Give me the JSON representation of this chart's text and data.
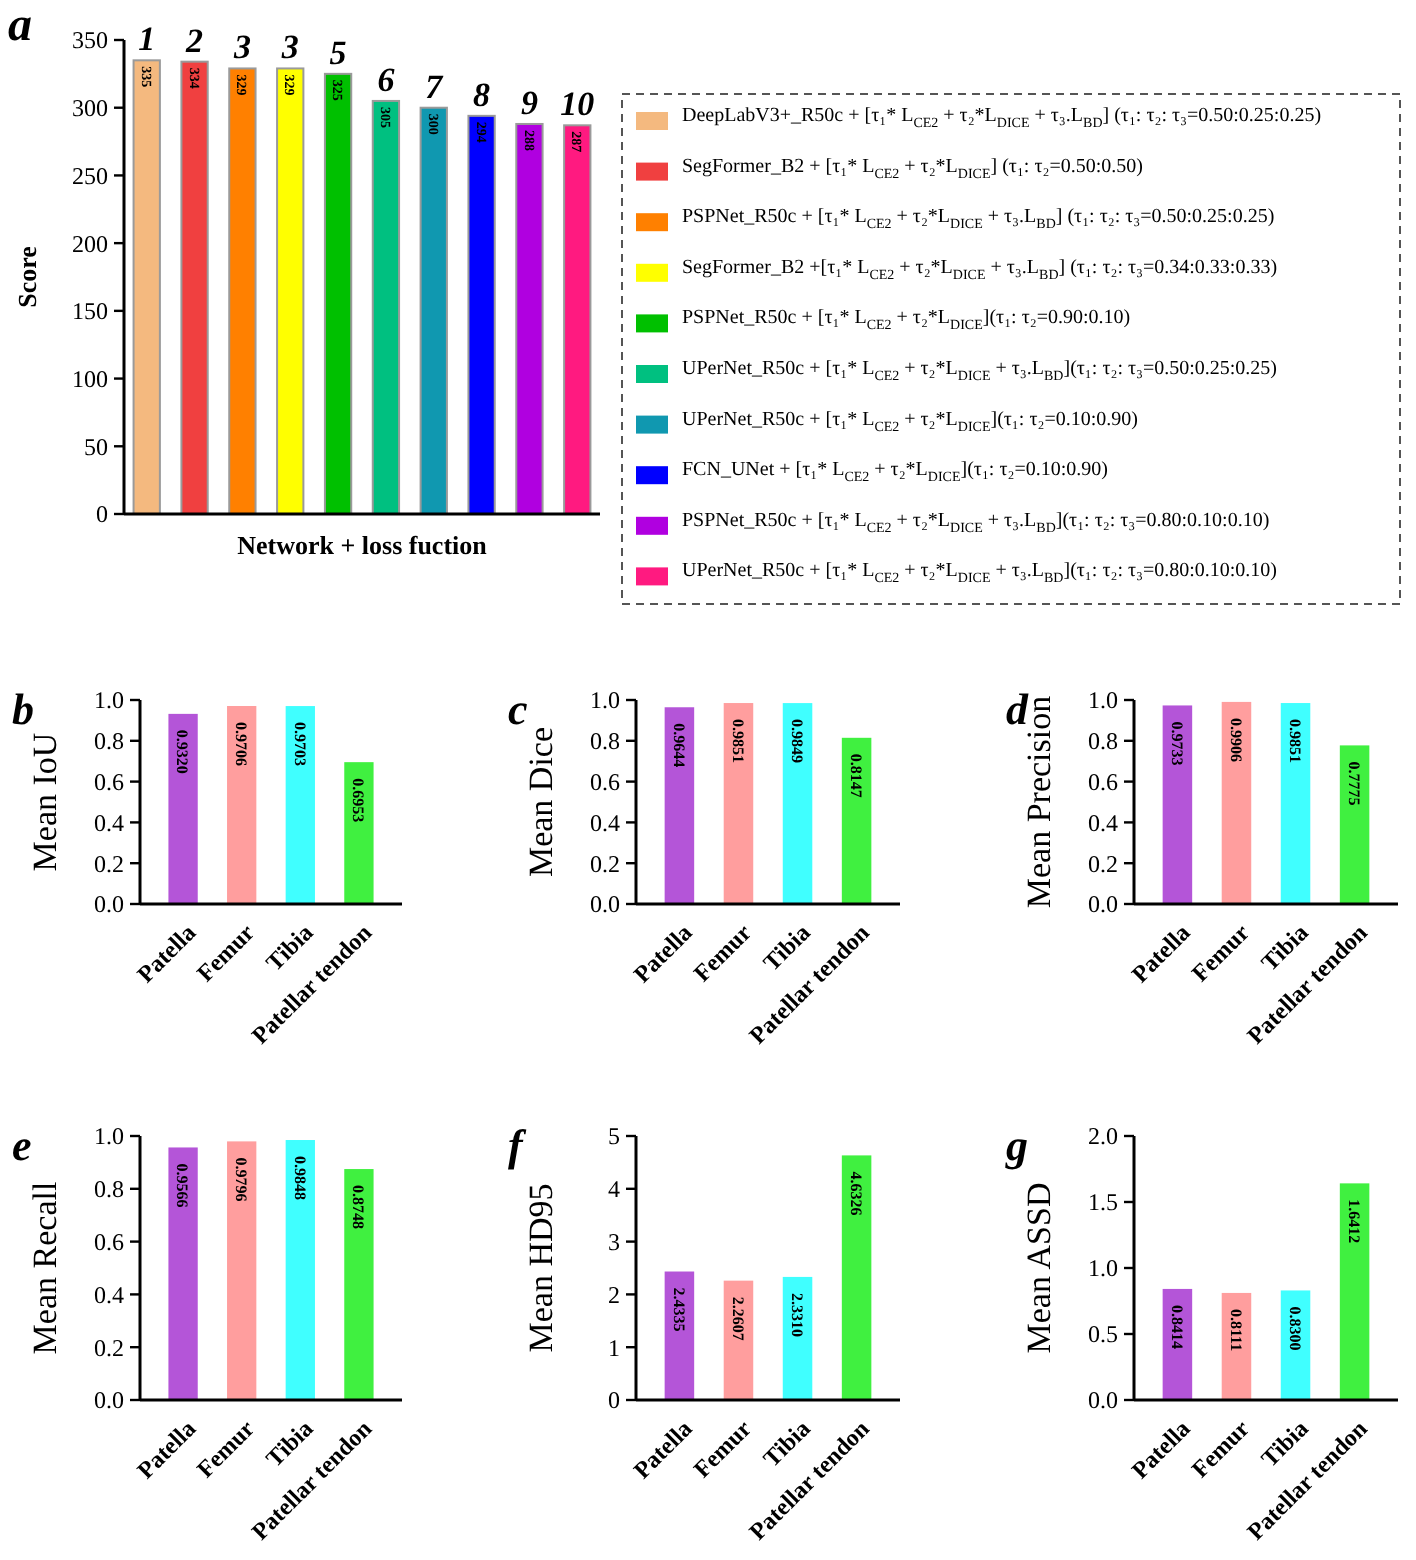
{
  "chart_data": [
    {
      "type": "bar",
      "title": "a",
      "xlabel": "Network + loss fuction",
      "ylabel": "Score",
      "categories": [
        null,
        null,
        null,
        null,
        null,
        null,
        null,
        null,
        null,
        null
      ],
      "data_labels": true,
      "legend": "right",
      "ylim": [
        0,
        350
      ],
      "yticks": [
        0,
        50,
        100,
        150,
        200,
        250,
        300,
        350
      ],
      "annotations": [
        "1",
        "2",
        "3",
        "3",
        "5",
        "6",
        "7",
        "8",
        "9",
        "10"
      ],
      "series": [
        {
          "name": "DeepLabV3+_R50c + [τ₁* L$_{CE2}$ + τ₂*L$_{DICE}$ + τ₃.L$_{BD}$] (τ₁: τ₂: τ₃=0.50:0.25:0.25)",
          "color": "#f4b97f",
          "values": [
            335,
            null,
            null,
            null,
            null,
            null,
            null,
            null,
            null,
            null
          ]
        },
        {
          "name": "SegFormer_B2 + [τ₁* L$_{CE2}$ + τ₂*L$_{DICE}$] (τ₁: τ₂=0.50:0.50)",
          "color": "#f04040",
          "values": [
            null,
            334,
            null,
            null,
            null,
            null,
            null,
            null,
            null,
            null
          ]
        },
        {
          "name": "PSPNet_R50c + [τ₁* L$_{CE2}$ + τ₂*L$_{DICE}$ + τ₃.L$_{BD}$] (τ₁: τ₂: τ₃=0.50:0.25:0.25)",
          "color": "#ff8000",
          "values": [
            null,
            null,
            329,
            null,
            null,
            null,
            null,
            null,
            null,
            null
          ]
        },
        {
          "name": "SegFormer_B2 +[τ₁* L$_{CE2}$ + τ₂*L$_{DICE}$ + τ₃.L$_{BD}$] (τ₁: τ₂: τ₃=0.34:0.33:0.33)",
          "color": "#ffff00",
          "values": [
            null,
            null,
            null,
            329,
            null,
            null,
            null,
            null,
            null,
            null
          ]
        },
        {
          "name": "PSPNet_R50c + [τ₁* L$_{CE2}$ + τ₂*L$_{DICE}$](τ₁: τ₂=0.90:0.10)",
          "color": "#00c000",
          "values": [
            null,
            null,
            null,
            null,
            325,
            null,
            null,
            null,
            null,
            null
          ]
        },
        {
          "name": "UPerNet_R50c + [τ₁* L$_{CE2}$ + τ₂*L$_{DICE}$ + τ₃.L$_{BD}$](τ₁: τ₂: τ₃=0.50:0.25:0.25)",
          "color": "#00c080",
          "values": [
            null,
            null,
            null,
            null,
            null,
            305,
            null,
            null,
            null,
            null
          ]
        },
        {
          "name": "UPerNet_R50c + [τ₁* L$_{CE2}$ + τ₂*L$_{DICE}$](τ₁: τ₂=0.10:0.90)",
          "color": "#1098b0",
          "values": [
            null,
            null,
            null,
            null,
            null,
            null,
            300,
            null,
            null,
            null
          ]
        },
        {
          "name": "FCN_UNet + [τ₁* L$_{CE2}$ + τ₂*L$_{DICE}$](τ₁: τ₂=0.10:0.90)",
          "color": "#0000ff",
          "values": [
            null,
            null,
            null,
            null,
            null,
            null,
            null,
            294,
            null,
            null
          ]
        },
        {
          "name": "PSPNet_R50c + [τ₁* L$_{CE2}$ + τ₂*L$_{DICE}$ + τ₃.L$_{BD}$](τ₁: τ₂: τ₃=0.80:0.10:0.10)",
          "color": "#b000e0",
          "values": [
            null,
            null,
            null,
            null,
            null,
            null,
            null,
            null,
            288,
            null
          ]
        },
        {
          "name": "UPerNet_R50c + [τ₁* L$_{CE2}$ + τ₂*L$_{DICE}$ + τ₃.L$_{BD}$](τ₁: τ₂: τ₃=0.80:0.10:0.10)",
          "color": "#ff1a80",
          "values": [
            null,
            null,
            null,
            null,
            null,
            null,
            null,
            null,
            null,
            287
          ]
        }
      ]
    },
    {
      "type": "bar",
      "title": "b",
      "ylabel": "Mean IoU",
      "categories": [
        "Patella",
        "Femur",
        "Tibia",
        "Patellar tendon"
      ],
      "values": [
        0.932,
        0.9706,
        0.9703,
        0.6953
      ],
      "value_labels": [
        "0.9320",
        "0.9706",
        "0.9703",
        "0.6953"
      ],
      "colors": [
        "#b455d8",
        "#ff9e9e",
        "#40ffff",
        "#40f040"
      ],
      "ylim": [
        0,
        1
      ],
      "yticks": [
        {
          "value": 0,
          "label": "0.0"
        },
        {
          "value": 0.2,
          "label": "0.2"
        },
        {
          "value": 0.4,
          "label": "0.4"
        },
        {
          "value": 0.6,
          "label": "0.6"
        },
        {
          "value": 0.8,
          "label": "0.8"
        },
        {
          "value": 1,
          "label": "1.0"
        }
      ]
    },
    {
      "type": "bar",
      "title": "c",
      "ylabel": "Mean Dice",
      "categories": [
        "Patella",
        "Femur",
        "Tibia",
        "Patellar tendon"
      ],
      "values": [
        0.9644,
        0.9851,
        0.9849,
        0.8147
      ],
      "value_labels": [
        "0.9644",
        "0.9851",
        "0.9849",
        "0.8147"
      ],
      "colors": [
        "#b455d8",
        "#ff9e9e",
        "#40ffff",
        "#40f040"
      ],
      "ylim": [
        0,
        1
      ],
      "yticks": [
        {
          "value": 0,
          "label": "0.0"
        },
        {
          "value": 0.2,
          "label": "0.2"
        },
        {
          "value": 0.4,
          "label": "0.4"
        },
        {
          "value": 0.6,
          "label": "0.6"
        },
        {
          "value": 0.8,
          "label": "0.8"
        },
        {
          "value": 1,
          "label": "1.0"
        }
      ]
    },
    {
      "type": "bar",
      "title": "d",
      "ylabel": "Mean Precision",
      "categories": [
        "Patella",
        "Femur",
        "Tibia",
        "Patellar tendon"
      ],
      "values": [
        0.9733,
        0.9906,
        0.9851,
        0.7775
      ],
      "value_labels": [
        "0.9733",
        "0.9906",
        "0.9851",
        "0.7775"
      ],
      "colors": [
        "#b455d8",
        "#ff9e9e",
        "#40ffff",
        "#40f040"
      ],
      "ylim": [
        0,
        1
      ],
      "yticks": [
        {
          "value": 0,
          "label": "0.0"
        },
        {
          "value": 0.2,
          "label": "0.2"
        },
        {
          "value": 0.4,
          "label": "0.4"
        },
        {
          "value": 0.6,
          "label": "0.6"
        },
        {
          "value": 0.8,
          "label": "0.8"
        },
        {
          "value": 1,
          "label": "1.0"
        }
      ]
    },
    {
      "type": "bar",
      "title": "e",
      "ylabel": "Mean Recall",
      "categories": [
        "Patella",
        "Femur",
        "Tibia",
        "Patellar tendon"
      ],
      "values": [
        0.9566,
        0.9796,
        0.9848,
        0.8748
      ],
      "value_labels": [
        "0.9566",
        "0.9796",
        "0.9848",
        "0.8748"
      ],
      "colors": [
        "#b455d8",
        "#ff9e9e",
        "#40ffff",
        "#40f040"
      ],
      "ylim": [
        0,
        1
      ],
      "yticks": [
        {
          "value": 0,
          "label": "0.0"
        },
        {
          "value": 0.2,
          "label": "0.2"
        },
        {
          "value": 0.4,
          "label": "0.4"
        },
        {
          "value": 0.6,
          "label": "0.6"
        },
        {
          "value": 0.8,
          "label": "0.8"
        },
        {
          "value": 1,
          "label": "1.0"
        }
      ]
    },
    {
      "type": "bar",
      "title": "f",
      "ylabel": "Mean HD95",
      "categories": [
        "Patella",
        "Femur",
        "Tibia",
        "Patellar tendon"
      ],
      "values": [
        2.4335,
        2.2607,
        2.331,
        4.6326
      ],
      "value_labels": [
        "2.4335",
        "2.2607",
        "2.3310",
        "4.6326"
      ],
      "colors": [
        "#b455d8",
        "#ff9e9e",
        "#40ffff",
        "#40f040"
      ],
      "ylim": [
        0,
        5
      ],
      "yticks": [
        0,
        1,
        2,
        3,
        4,
        5
      ]
    },
    {
      "type": "bar",
      "title": "g",
      "ylabel": "Mean ASSD",
      "categories": [
        "Patella",
        "Femur",
        "Tibia",
        "Patellar tendon"
      ],
      "values": [
        0.8414,
        0.8111,
        0.83,
        1.6412
      ],
      "value_labels": [
        "0.8414",
        "0.8111",
        "0.8300",
        "1.6412"
      ],
      "colors": [
        "#b455d8",
        "#ff9e9e",
        "#40ffff",
        "#40f040"
      ],
      "ylim": [
        0,
        2
      ],
      "yticks": [
        {
          "value": 0,
          "label": "0.0"
        },
        {
          "value": 0.5,
          "label": "0.5"
        },
        {
          "value": 1,
          "label": "1.0"
        },
        {
          "value": 1.5,
          "label": "1.5"
        },
        {
          "value": 2,
          "label": "2.0"
        }
      ]
    }
  ]
}
